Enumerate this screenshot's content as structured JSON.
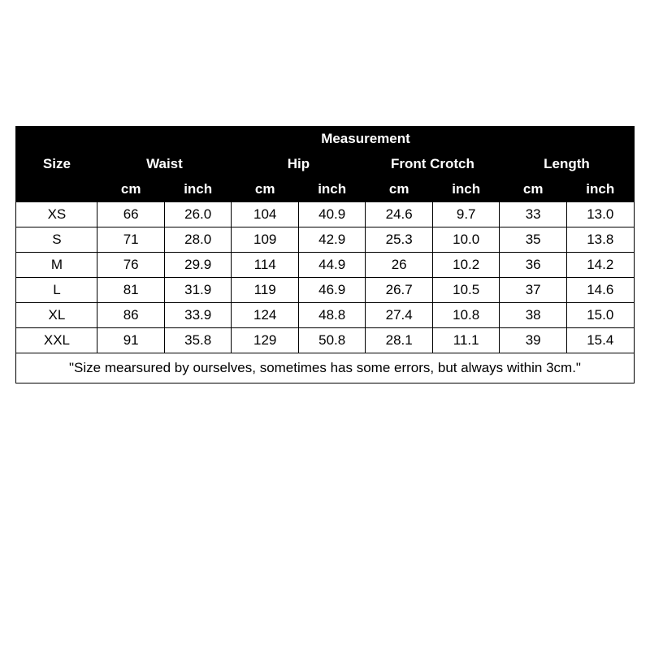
{
  "table": {
    "type": "table",
    "background_color": "#ffffff",
    "border_color": "#000000",
    "header_bg": "#000000",
    "header_fg": "#ffffff",
    "cell_fontsize": 17,
    "size_label": "Size",
    "measurement_label": "Measurement",
    "groups": [
      "Waist",
      "Hip",
      "Front Crotch",
      "Length"
    ],
    "units": [
      "cm",
      "inch"
    ],
    "rows": [
      {
        "size": "XS",
        "values": [
          "66",
          "26.0",
          "104",
          "40.9",
          "24.6",
          "9.7",
          "33",
          "13.0"
        ]
      },
      {
        "size": "S",
        "values": [
          "71",
          "28.0",
          "109",
          "42.9",
          "25.3",
          "10.0",
          "35",
          "13.8"
        ]
      },
      {
        "size": "M",
        "values": [
          "76",
          "29.9",
          "114",
          "44.9",
          "26",
          "10.2",
          "36",
          "14.2"
        ]
      },
      {
        "size": "L",
        "values": [
          "81",
          "31.9",
          "119",
          "46.9",
          "26.7",
          "10.5",
          "37",
          "14.6"
        ]
      },
      {
        "size": "XL",
        "values": [
          "86",
          "33.9",
          "124",
          "48.8",
          "27.4",
          "10.8",
          "38",
          "15.0"
        ]
      },
      {
        "size": "XXL",
        "values": [
          "91",
          "35.8",
          "129",
          "50.8",
          "28.1",
          "11.1",
          "39",
          "15.4"
        ]
      }
    ],
    "note": "\"Size mearsured by ourselves, sometimes has some errors, but always within 3cm.\""
  }
}
